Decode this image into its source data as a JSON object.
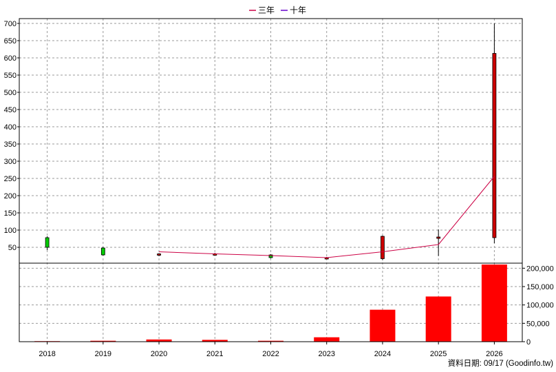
{
  "chart_data": {
    "type": "candlestick",
    "legend": [
      {
        "name": "三年",
        "color": "#cc0044"
      },
      {
        "name": "十年",
        "color": "#6600cc"
      }
    ],
    "legend_position": "top-center",
    "grid": true,
    "categories": [
      "2018",
      "2019",
      "2020",
      "2021",
      "2022",
      "2023",
      "2024",
      "2025",
      "2026"
    ],
    "price_axis": {
      "ylim": [
        0,
        700
      ],
      "ticks": [
        50,
        100,
        150,
        200,
        250,
        300,
        350,
        400,
        450,
        500,
        550,
        600,
        650,
        700
      ],
      "tick_labels": [
        "50",
        "100",
        "150",
        "200",
        "250",
        "300",
        "350",
        "400",
        "450",
        "500",
        "550",
        "600",
        "650",
        "700"
      ]
    },
    "candles": [
      {
        "year": "2018",
        "open": 50,
        "close": 78,
        "high": 82,
        "low": 42,
        "color": "#00cc00"
      },
      {
        "year": "2019",
        "open": 28,
        "close": 48,
        "high": 50,
        "low": 26,
        "color": "#00cc00"
      },
      {
        "year": "2020",
        "open": 31,
        "close": 28,
        "high": 33,
        "low": 24,
        "color": "#cc0000"
      },
      {
        "year": "2021",
        "open": 31,
        "close": 30,
        "high": 34,
        "low": 26,
        "color": "#cc0000"
      },
      {
        "year": "2022",
        "open": 20,
        "close": 28,
        "high": 30,
        "low": 18,
        "color": "#00cc00"
      },
      {
        "year": "2023",
        "open": 20,
        "close": 17,
        "high": 22,
        "low": 15,
        "color": "#cc0000"
      },
      {
        "year": "2024",
        "open": 82,
        "close": 17,
        "high": 84,
        "low": 13,
        "color": "#cc0000"
      },
      {
        "year": "2025",
        "open": 80,
        "close": 78,
        "high": 102,
        "low": 25,
        "color": "#cc0000"
      },
      {
        "year": "2026",
        "open": 613,
        "close": 78,
        "high": 700,
        "low": 62,
        "color": "#cc0000"
      }
    ],
    "three_year_line": {
      "name": "三年",
      "color": "#cc0044",
      "points": [
        {
          "year": "2020",
          "value": 37
        },
        {
          "year": "2021",
          "value": 31
        },
        {
          "year": "2022",
          "value": 26
        },
        {
          "year": "2023",
          "value": 20
        },
        {
          "year": "2024",
          "value": 37
        },
        {
          "year": "2025",
          "value": 58
        },
        {
          "year": "2026",
          "value": 256
        }
      ]
    },
    "volume_axis": {
      "ylim": [
        0,
        210000
      ],
      "ticks": [
        0,
        50000,
        100000,
        150000,
        200000
      ],
      "tick_labels": [
        "0",
        "50,000",
        "100,000",
        "150,000",
        "200,000"
      ]
    },
    "volume": {
      "color": "#ff0000",
      "values": [
        1500,
        2500,
        6000,
        5000,
        2500,
        12000,
        87000,
        123000,
        210000
      ]
    }
  },
  "footer": "資料日期: 09/17  (Goodinfo.tw)"
}
